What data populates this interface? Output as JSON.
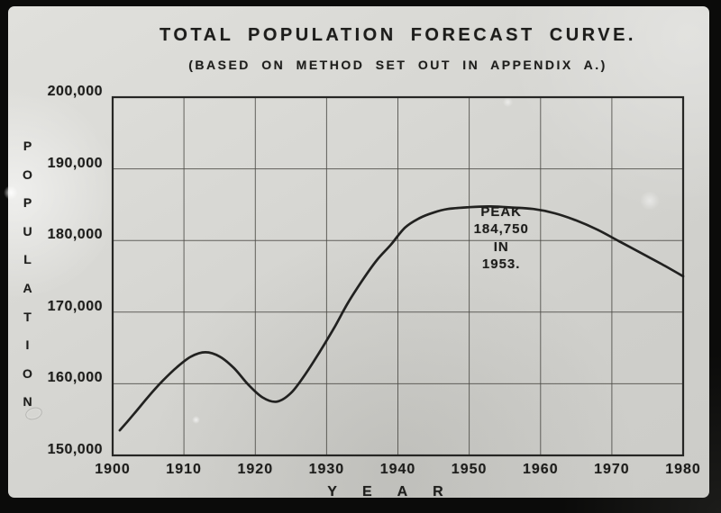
{
  "colors": {
    "ink": "#1d1d1b",
    "grid": "#4c4b46",
    "frame": "#0b0b0a",
    "paper": "#d4d4d0",
    "curve": "#1a1a19"
  },
  "chart_data": {
    "type": "line",
    "title": "TOTAL POPULATION FORECAST CURVE.",
    "subtitle": "(BASED ON METHOD SET OUT IN APPENDIX A.)",
    "xlabel": "YEAR",
    "ylabel": "POPULATION",
    "xlim": [
      1900,
      1980
    ],
    "ylim": [
      150000,
      200000
    ],
    "grid": true,
    "legend": "none",
    "x_ticks": [
      {
        "value": 1900,
        "label": "1900"
      },
      {
        "value": 1910,
        "label": "1910"
      },
      {
        "value": 1920,
        "label": "1920"
      },
      {
        "value": 1930,
        "label": "1930"
      },
      {
        "value": 1940,
        "label": "1940"
      },
      {
        "value": 1950,
        "label": "1950"
      },
      {
        "value": 1960,
        "label": "1960"
      },
      {
        "value": 1970,
        "label": "1970"
      },
      {
        "value": 1980,
        "label": "1980"
      }
    ],
    "y_ticks": [
      {
        "value": 150000,
        "label": "150,000"
      },
      {
        "value": 160000,
        "label": "160,000"
      },
      {
        "value": 170000,
        "label": "170,000"
      },
      {
        "value": 180000,
        "label": "180,000"
      },
      {
        "value": 190000,
        "label": "190,000"
      },
      {
        "value": 200000,
        "label": "200,000"
      }
    ],
    "series": [
      {
        "name": "total-population-forecast",
        "points": [
          [
            1901,
            153500
          ],
          [
            1903,
            155800
          ],
          [
            1905,
            158200
          ],
          [
            1907,
            160400
          ],
          [
            1909,
            162300
          ],
          [
            1911,
            163800
          ],
          [
            1913,
            164400
          ],
          [
            1915,
            163800
          ],
          [
            1917,
            162200
          ],
          [
            1919,
            159900
          ],
          [
            1921,
            158100
          ],
          [
            1923,
            157500
          ],
          [
            1925,
            158700
          ],
          [
            1927,
            161300
          ],
          [
            1929,
            164400
          ],
          [
            1931,
            167700
          ],
          [
            1933,
            171300
          ],
          [
            1935,
            174400
          ],
          [
            1937,
            177200
          ],
          [
            1939,
            179400
          ],
          [
            1941,
            181800
          ],
          [
            1943,
            183100
          ],
          [
            1945,
            183900
          ],
          [
            1947,
            184400
          ],
          [
            1950,
            184650
          ],
          [
            1953,
            184750
          ],
          [
            1956,
            184600
          ],
          [
            1959,
            184400
          ],
          [
            1962,
            183800
          ],
          [
            1965,
            182800
          ],
          [
            1968,
            181500
          ],
          [
            1971,
            179900
          ],
          [
            1974,
            178300
          ],
          [
            1977,
            176700
          ],
          [
            1980,
            175000
          ]
        ]
      }
    ],
    "annotation": {
      "lines": [
        "PEAK",
        "184,750",
        "IN",
        "1953."
      ],
      "anchor_year": 1954.5,
      "anchor_population": 180300,
      "peak_value": 184750,
      "peak_year": 1953
    }
  }
}
